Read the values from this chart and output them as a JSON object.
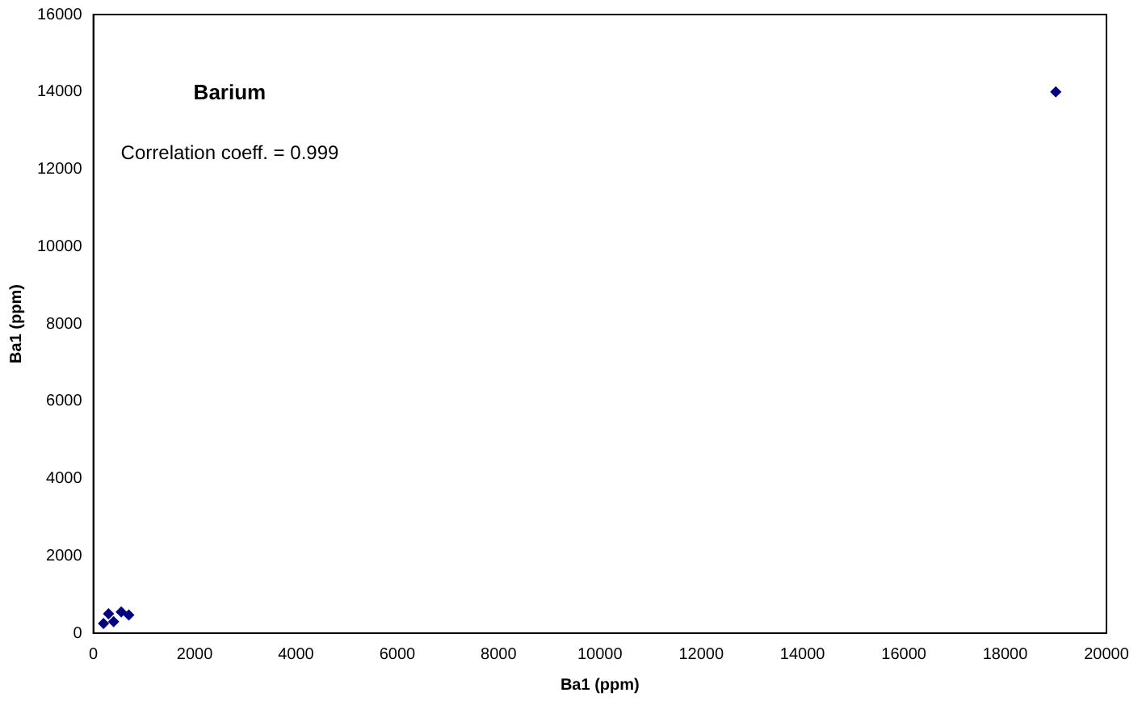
{
  "chart_data": {
    "type": "scatter",
    "title": "Barium",
    "xlabel": "Ba1 (ppm)",
    "ylabel": "Ba1 (ppm)",
    "annotations": [
      "Correlation coeff. = 0.999"
    ],
    "x": [
      200,
      400,
      300,
      550,
      700,
      19000
    ],
    "series": [
      {
        "color": "#000080",
        "values": [
          250,
          300,
          500,
          550,
          470,
          14000
        ]
      }
    ],
    "xlim": [
      0,
      20000
    ],
    "xticks": [
      0,
      2000,
      4000,
      6000,
      8000,
      10000,
      12000,
      14000,
      16000,
      18000,
      20000
    ],
    "ylim": [
      0,
      16000
    ],
    "yticks": [
      0,
      2000,
      4000,
      6000,
      8000,
      10000,
      12000,
      14000,
      16000
    ],
    "marker": "diamond",
    "grid": false,
    "legend": false
  }
}
